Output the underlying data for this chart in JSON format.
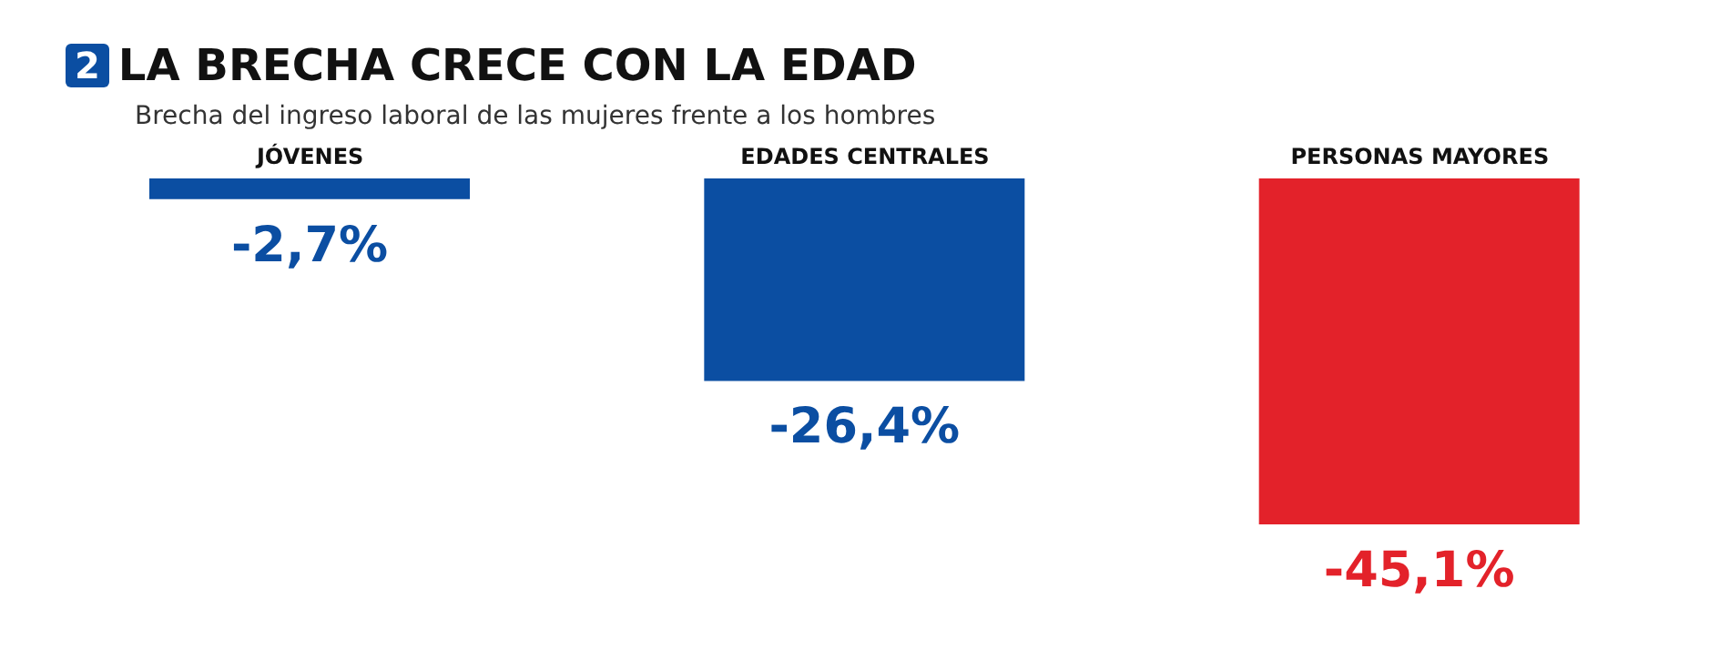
{
  "chart_data": {
    "type": "bar",
    "title": "LA BRECHA CRECE CON LA EDAD",
    "subtitle": "Brecha del ingreso laboral de las mujeres frente a los hombres",
    "annotations": [
      "2"
    ],
    "categories": [
      "JÓVENES",
      "EDADES CENTRALES",
      "PERSONAS MAYORES"
    ],
    "values": [
      -2.7,
      -26.4,
      -45.1
    ],
    "colors": [
      "#0b4ea2",
      "#0b4ea2",
      "#e3222a"
    ],
    "value_labels": [
      "-2,7%",
      "-26,4%",
      "-45,1%"
    ]
  }
}
